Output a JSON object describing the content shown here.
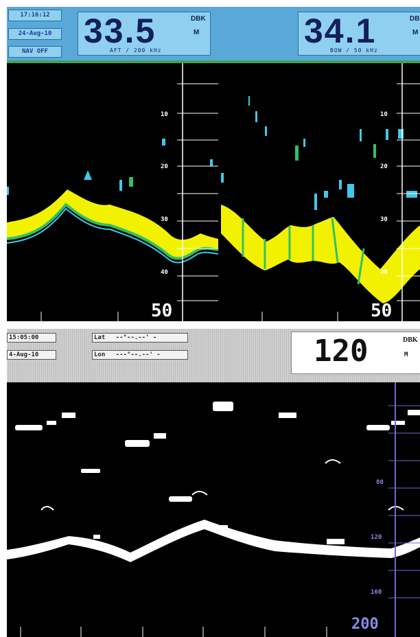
{
  "top_panel": {
    "time": "17:16:12",
    "date": "24-Aug-10",
    "nav_status": "NAV OFF",
    "aft": {
      "value": "33.5",
      "unit_top": "DBK",
      "unit_bottom": "M",
      "caption": "AFT / 200 kHz"
    },
    "bow": {
      "value": "34.1",
      "unit_top": "DB",
      "unit_bottom": "M",
      "caption": "BOW / 50 kHz"
    },
    "scale_left": [
      "10",
      "20",
      "30",
      "40"
    ],
    "scale_right": [
      "10",
      "20",
      "30",
      "40"
    ],
    "scale_max_left": "50",
    "scale_max_right": "50",
    "colors": {
      "header": "#58a8d8",
      "box": "#8fd0f0",
      "echo_yellow": "#f2f200",
      "echo_green": "#2fc06a",
      "echo_cyan": "#40c8e8"
    }
  },
  "bottom_panel": {
    "time": "15:05:00",
    "date": "4-Aug-10",
    "lat_label": "Lat",
    "lat_value": "--°--.--' -",
    "lon_label": "Lon",
    "lon_value": "---°--.--' -",
    "depth": {
      "value": "120",
      "unit_top": "DBK",
      "unit_bottom": "M"
    },
    "scale": [
      "80",
      "120",
      "160"
    ],
    "scale_max": "200",
    "colors": {
      "scale_line": "#6a6ad0",
      "scale_text": "#8a8ae8"
    }
  }
}
